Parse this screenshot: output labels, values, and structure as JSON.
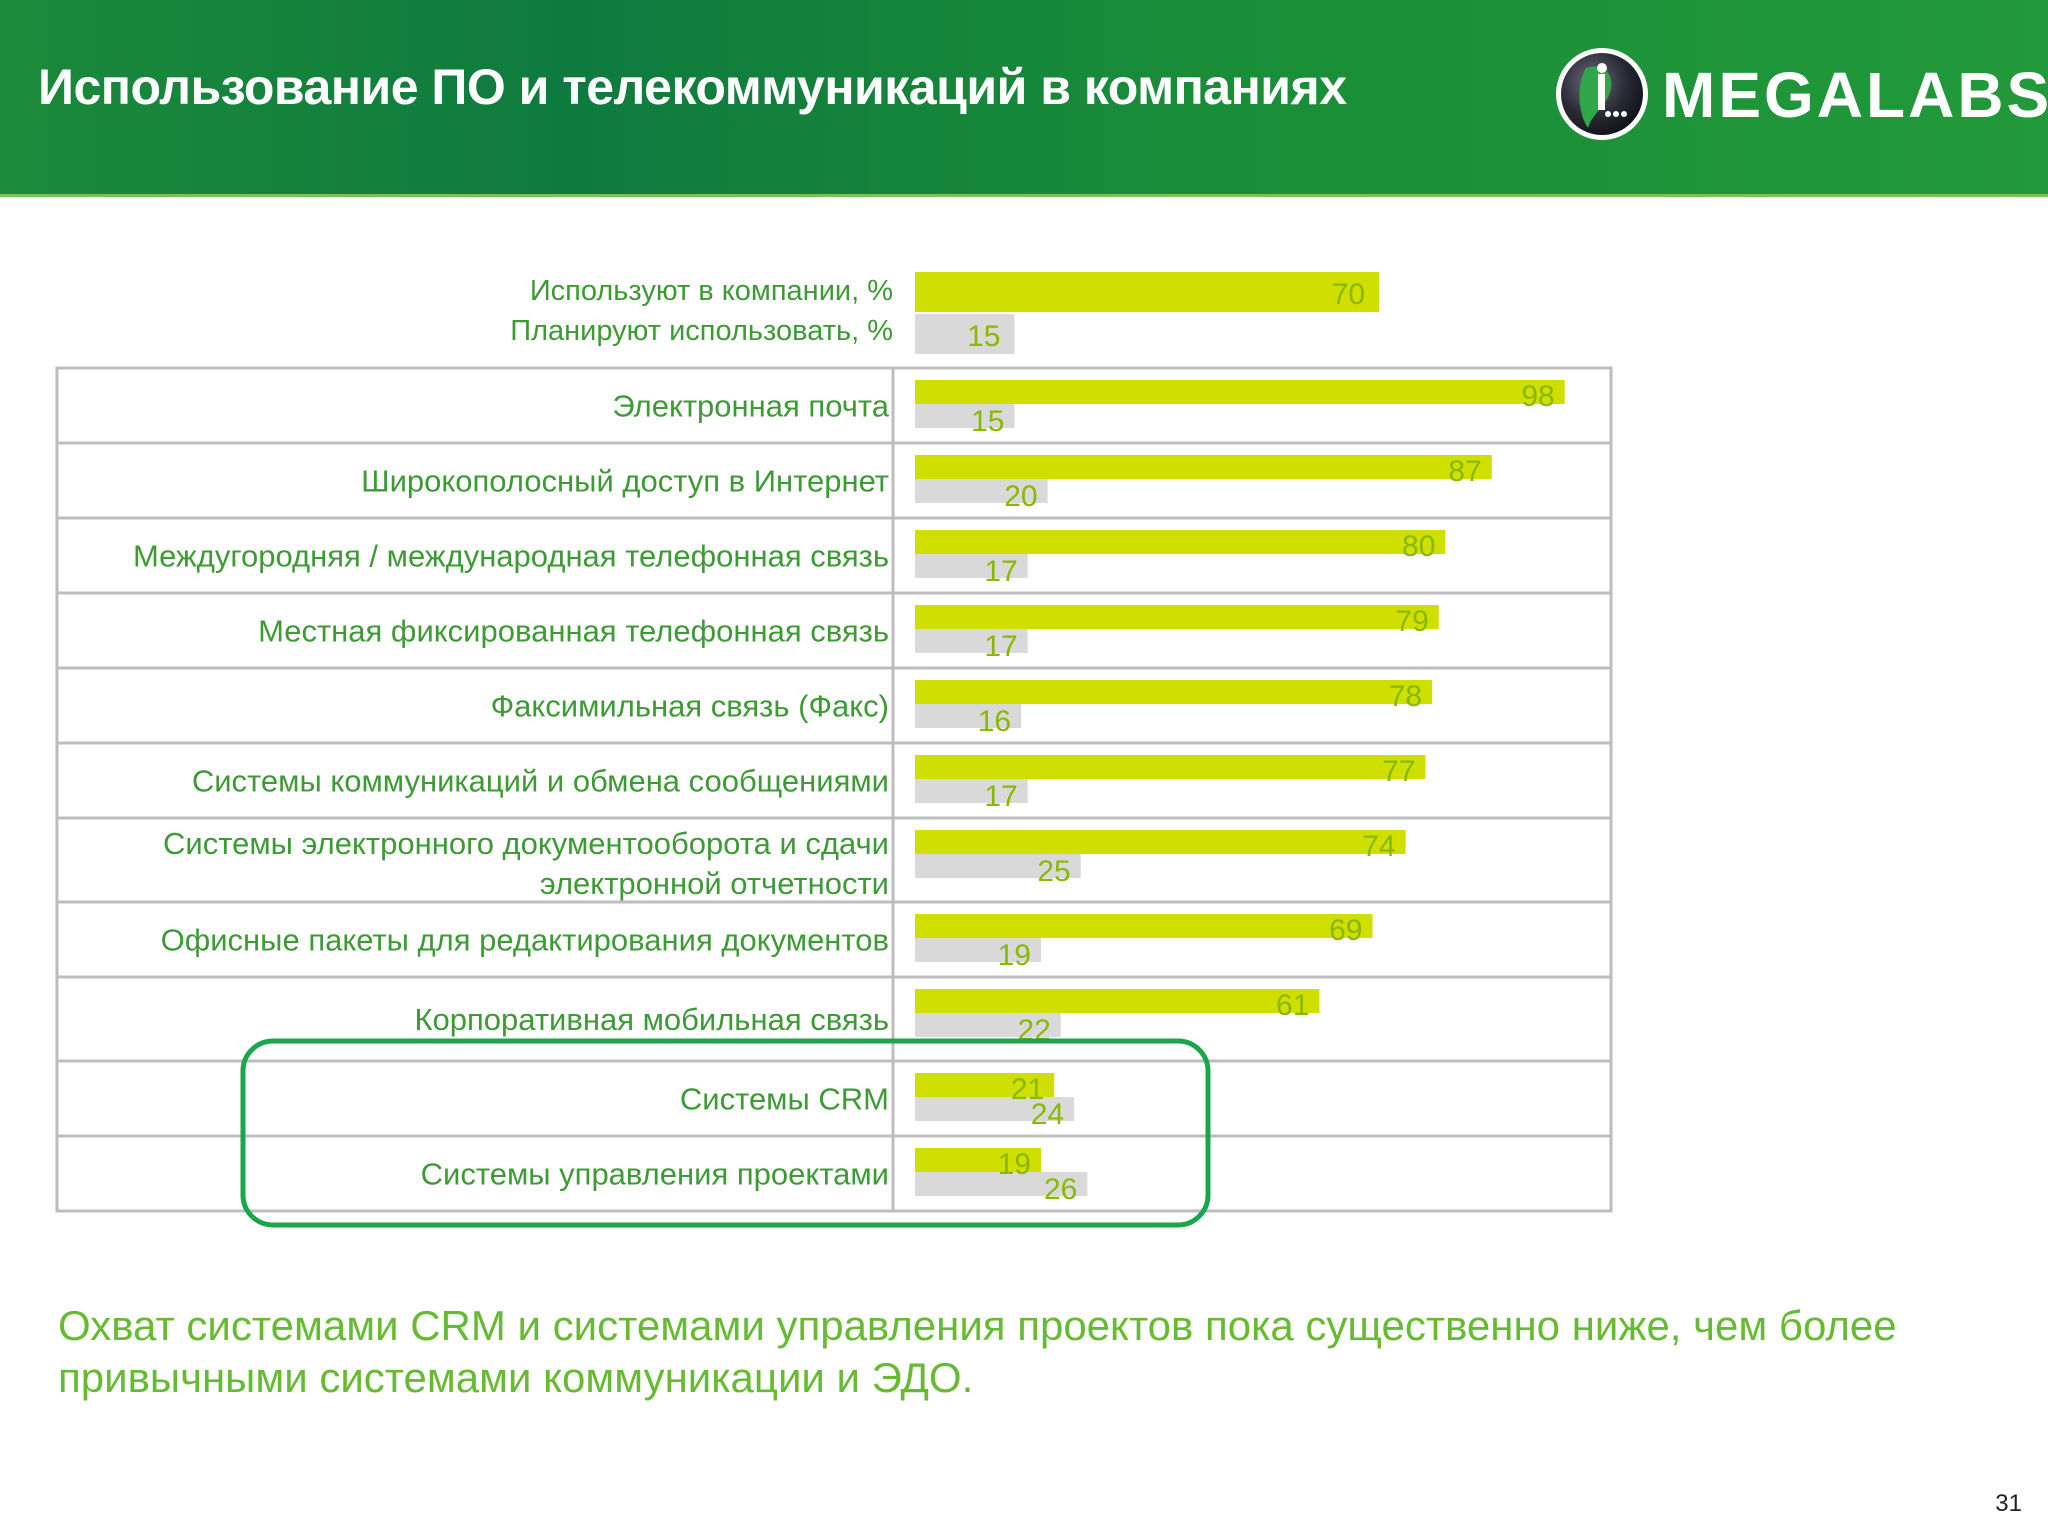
{
  "slide": {
    "title": "Использование ПО и телекоммуникаций в компаниях",
    "logo_text": "MEGALABS",
    "conclusion": "Охват системами CRM и системами управления проектов пока существенно ниже, чем более привычными системами коммуникации и ЭДО.",
    "page_number": "31"
  },
  "colors": {
    "header_green": "#138a3c",
    "use_bar": "#cfe000",
    "plan_bar": "#d9d9d9",
    "value_label": "#88b800",
    "highlight": "#1aa64a"
  },
  "chart_data": {
    "type": "bar",
    "orientation": "horizontal",
    "legend": [
      {
        "name": "Используют в компании, %",
        "value": 70
      },
      {
        "name": "Планируют использовать, %",
        "value": 15
      }
    ],
    "categories": [
      "Электронная почта",
      "Широкополосный доступ в Интернет",
      "Междугородняя / международная телефонная связь",
      "Местная фиксированная телефонная связь",
      "Факсимильная связь (Факс)",
      "Системы коммуникаций и обмена сообщениями",
      "Системы электронного документооборота и сдачи электронной отчетности",
      "Офисные пакеты для редактирования документов",
      "Корпоративная мобильная связь",
      "Системы CRM",
      "Системы управления проектами"
    ],
    "series": [
      {
        "name": "Используют в компании, %",
        "values": [
          98,
          87,
          80,
          79,
          78,
          77,
          74,
          69,
          61,
          21,
          19
        ]
      },
      {
        "name": "Планируют использовать, %",
        "values": [
          15,
          20,
          17,
          17,
          16,
          17,
          25,
          19,
          22,
          24,
          26
        ]
      }
    ],
    "highlighted_categories": [
      "Системы CRM",
      "Системы управления проектами"
    ],
    "xlim": [
      0,
      100
    ],
    "grid": false
  }
}
